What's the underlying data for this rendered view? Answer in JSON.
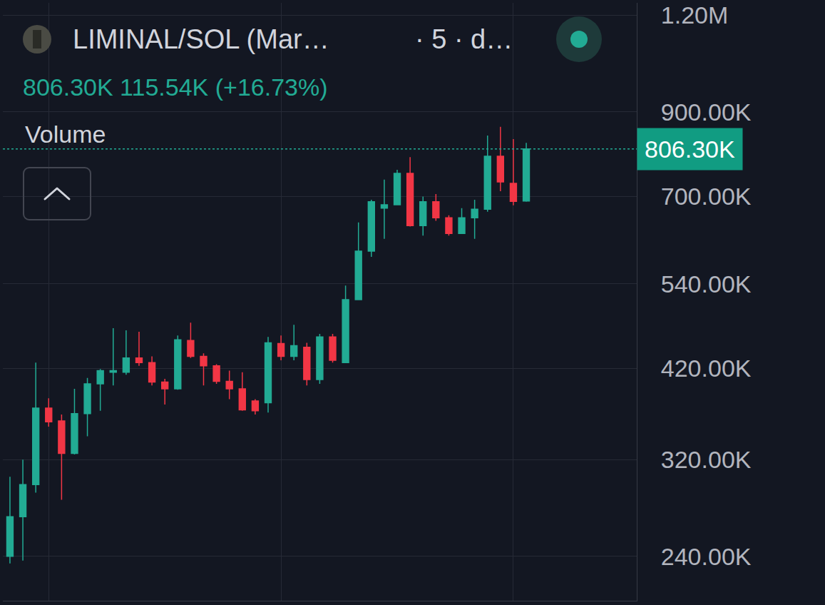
{
  "chart_data": {
    "type": "candlestick",
    "title": "LIMINAL/SOL (Mar…",
    "subtitle": "· 5 · d…",
    "annotations": [
      {
        "text": "806.30K 115.54K (+16.73%)"
      },
      {
        "text": "Volume"
      },
      {
        "text": "806.30K",
        "y": 806300
      }
    ],
    "x": [
      0,
      1,
      2,
      3,
      4,
      5,
      6,
      7,
      8,
      9,
      10,
      11,
      12,
      13,
      14,
      15,
      16,
      17,
      18,
      19,
      20,
      21,
      22,
      23,
      24,
      25,
      26,
      27,
      28,
      29,
      30,
      31,
      32,
      33,
      34,
      35,
      36,
      37,
      38,
      39,
      40
    ],
    "open": [
      240000,
      270000,
      297000,
      373000,
      359000,
      326000,
      367000,
      401000,
      415000,
      415000,
      433000,
      427000,
      403000,
      395000,
      456000,
      435000,
      423000,
      404000,
      395000,
      381000,
      379000,
      452000,
      435000,
      447000,
      406000,
      461000,
      427000,
      515000,
      595000,
      676000,
      683000,
      750000,
      642000,
      689000,
      657000,
      627000,
      657000,
      674000,
      789000,
      728000,
      690760
    ],
    "high": [
      304000,
      320000,
      427000,
      384000,
      366000,
      395000,
      408000,
      419000,
      473000,
      470000,
      468000,
      435000,
      407000,
      463000,
      481000,
      439000,
      425000,
      417000,
      415000,
      383000,
      461000,
      463000,
      478000,
      453000,
      465000,
      465000,
      537000,
      648000,
      693000,
      736000,
      758000,
      787000,
      700000,
      705000,
      662000,
      676000,
      693000,
      839000,
      861000,
      830000,
      821000
    ],
    "low": [
      235000,
      237000,
      290000,
      353000,
      284000,
      325000,
      343000,
      370000,
      399000,
      412000,
      423000,
      399000,
      377000,
      394000,
      433000,
      399000,
      401000,
      383000,
      370000,
      366000,
      368000,
      430000,
      430000,
      399000,
      401000,
      427000,
      427000,
      515000,
      585000,
      617000,
      682000,
      640000,
      623000,
      651000,
      623000,
      626000,
      617000,
      669000,
      711000,
      682000,
      689000
    ],
    "close": [
      270000,
      297000,
      373000,
      358000,
      326000,
      367000,
      401000,
      417000,
      417000,
      433000,
      427000,
      403000,
      395000,
      457000,
      435000,
      423000,
      404000,
      395000,
      371000,
      370000,
      453000,
      435000,
      449000,
      406000,
      461000,
      430000,
      515000,
      595000,
      689000,
      683000,
      750000,
      642000,
      689000,
      657000,
      627000,
      657000,
      674000,
      789000,
      731000,
      690000,
      806300
    ],
    "xlim": [
      -0.55,
      48.56
    ],
    "xticks": [
      3,
      21,
      39
    ],
    "ylim": [
      210300,
      1245200
    ],
    "yticks": [
      {
        "value": 240000,
        "label": "240.00K"
      },
      {
        "value": 320000,
        "label": "320.00K"
      },
      {
        "value": 420000,
        "label": "420.00K"
      },
      {
        "value": 540000,
        "label": "540.00K"
      },
      {
        "value": 700000,
        "label": "700.00K"
      },
      {
        "value": 900000,
        "label": "900.00K"
      },
      {
        "value": 1200000,
        "label": "1.20M"
      }
    ],
    "log": "y",
    "grid": true,
    "tick_labels": "y"
  }
}
